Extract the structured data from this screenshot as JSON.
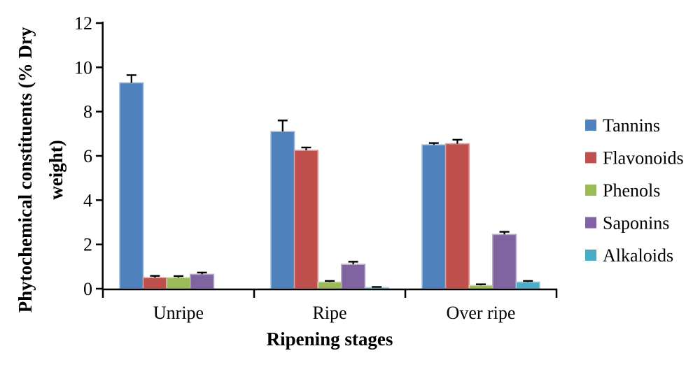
{
  "chart_data": {
    "type": "bar",
    "title": "",
    "xlabel": "Ripening stages",
    "ylabel": "Phytochemical constituents (% Dry weight)",
    "ylabel_line1": "Phytochemical constituents (% Dry",
    "ylabel_line2": "weight)",
    "categories": [
      "Unripe",
      "Ripe",
      "Over ripe"
    ],
    "series": [
      {
        "name": "Tannins",
        "color": "#4F81BD",
        "values": [
          9.3,
          7.1,
          6.5
        ],
        "errors": [
          0.35,
          0.5,
          0.08
        ]
      },
      {
        "name": "Flavonoids",
        "color": "#C0504D",
        "values": [
          0.5,
          6.25,
          6.55
        ],
        "errors": [
          0.08,
          0.13,
          0.18
        ]
      },
      {
        "name": "Phenols",
        "color": "#9BBB59",
        "values": [
          0.5,
          0.3,
          0.15
        ],
        "errors": [
          0.07,
          0.05,
          0.05
        ]
      },
      {
        "name": "Saponins",
        "color": "#8064A2",
        "values": [
          0.65,
          1.1,
          2.45
        ],
        "errors": [
          0.08,
          0.12,
          0.12
        ]
      },
      {
        "name": "Alkaloids",
        "color": "#4BACC6",
        "values": [
          0.0,
          0.05,
          0.3
        ],
        "errors": [
          0.0,
          0.03,
          0.05
        ]
      }
    ],
    "yticks": [
      0,
      2,
      4,
      6,
      8,
      10,
      12
    ],
    "ylim": [
      0,
      12
    ],
    "grid": false,
    "error_bars": true,
    "legend_position": "right",
    "axis_color": "#000000",
    "background": "#FFFFFF"
  }
}
